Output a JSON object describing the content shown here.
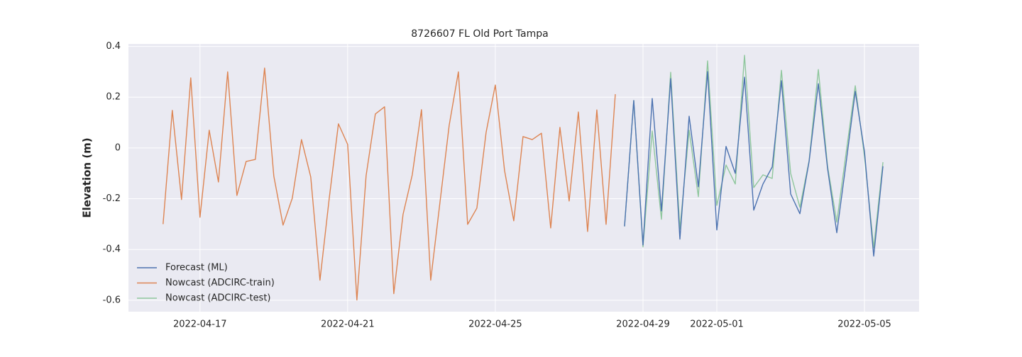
{
  "chart_data": {
    "type": "line",
    "title": "8726607 FL Old Port Tampa",
    "ylabel": "Elevation (m)",
    "xlim": [
      "2022-04-15 01:30",
      "2022-05-06 11:30"
    ],
    "xticks": [
      "2022-04-17",
      "2022-04-21",
      "2022-04-25",
      "2022-04-29",
      "2022-05-01",
      "2022-05-05"
    ],
    "ylim": [
      -0.645,
      0.41
    ],
    "yticks": [
      -0.6,
      -0.4,
      -0.2,
      0.0,
      0.2,
      0.4
    ],
    "grid": true,
    "legend": "lower left",
    "series": [
      {
        "name": "Forecast (ML)",
        "color": "#4c72b0",
        "x": [
          "2022-04-28 12:00",
          "2022-04-28 18:00",
          "2022-04-29 00:00",
          "2022-04-29 06:00",
          "2022-04-29 12:00",
          "2022-04-29 18:00",
          "2022-04-30 00:00",
          "2022-04-30 06:00",
          "2022-04-30 12:00",
          "2022-04-30 18:00",
          "2022-05-01 00:00",
          "2022-05-01 06:00",
          "2022-05-01 12:00",
          "2022-05-01 18:00",
          "2022-05-02 00:00",
          "2022-05-02 06:00",
          "2022-05-02 12:00",
          "2022-05-02 18:00",
          "2022-05-03 00:00",
          "2022-05-03 06:00",
          "2022-05-03 12:00",
          "2022-05-03 18:00",
          "2022-05-04 00:00",
          "2022-05-04 06:00",
          "2022-05-04 12:00",
          "2022-05-04 18:00",
          "2022-05-05 00:00",
          "2022-05-05 06:00",
          "2022-05-05 12:00"
        ],
        "values": [
          -0.309,
          0.187,
          -0.382,
          0.195,
          -0.248,
          0.273,
          -0.359,
          0.125,
          -0.153,
          0.301,
          -0.323,
          0.006,
          -0.1,
          0.279,
          -0.245,
          -0.142,
          -0.075,
          0.265,
          -0.181,
          -0.259,
          -0.053,
          0.253,
          -0.081,
          -0.334,
          -0.061,
          0.223,
          -0.014,
          -0.426,
          -0.072
        ]
      },
      {
        "name": "Nowcast (ADCIRC-train)",
        "color": "#dd8452",
        "x": [
          "2022-04-16 00:00",
          "2022-04-16 06:00",
          "2022-04-16 12:00",
          "2022-04-16 18:00",
          "2022-04-17 00:00",
          "2022-04-17 06:00",
          "2022-04-17 12:00",
          "2022-04-17 18:00",
          "2022-04-18 00:00",
          "2022-04-18 06:00",
          "2022-04-18 12:00",
          "2022-04-18 18:00",
          "2022-04-19 00:00",
          "2022-04-19 06:00",
          "2022-04-19 12:00",
          "2022-04-19 18:00",
          "2022-04-20 00:00",
          "2022-04-20 06:00",
          "2022-04-20 12:00",
          "2022-04-20 18:00",
          "2022-04-21 00:00",
          "2022-04-21 06:00",
          "2022-04-21 12:00",
          "2022-04-21 18:00",
          "2022-04-22 00:00",
          "2022-04-22 06:00",
          "2022-04-22 12:00",
          "2022-04-22 18:00",
          "2022-04-23 00:00",
          "2022-04-23 06:00",
          "2022-04-23 12:00",
          "2022-04-23 18:00",
          "2022-04-24 00:00",
          "2022-04-24 06:00",
          "2022-04-24 12:00",
          "2022-04-24 18:00",
          "2022-04-25 00:00",
          "2022-04-25 06:00",
          "2022-04-25 12:00",
          "2022-04-25 18:00",
          "2022-04-26 00:00",
          "2022-04-26 06:00",
          "2022-04-26 12:00",
          "2022-04-26 18:00",
          "2022-04-27 00:00",
          "2022-04-27 06:00",
          "2022-04-27 12:00",
          "2022-04-27 18:00",
          "2022-04-28 00:00",
          "2022-04-28 06:00"
        ],
        "values": [
          -0.3,
          0.148,
          -0.203,
          0.276,
          -0.273,
          0.07,
          -0.134,
          0.3,
          -0.187,
          -0.053,
          -0.045,
          0.315,
          -0.111,
          -0.304,
          -0.198,
          0.033,
          -0.114,
          -0.521,
          -0.2,
          0.095,
          0.014,
          -0.599,
          -0.109,
          0.134,
          0.162,
          -0.574,
          -0.262,
          -0.106,
          0.151,
          -0.521,
          -0.215,
          0.089,
          0.3,
          -0.301,
          -0.237,
          0.061,
          0.248,
          -0.089,
          -0.287,
          0.045,
          0.033,
          0.058,
          -0.315,
          0.081,
          -0.209,
          0.142,
          -0.329,
          0.15,
          -0.301,
          0.212
        ]
      },
      {
        "name": "Nowcast (ADCIRC-test)",
        "color": "#8fc79d",
        "x": [
          "2022-04-28 12:00",
          "2022-04-28 18:00",
          "2022-04-29 00:00",
          "2022-04-29 06:00",
          "2022-04-29 12:00",
          "2022-04-29 18:00",
          "2022-04-30 00:00",
          "2022-04-30 06:00",
          "2022-04-30 12:00",
          "2022-04-30 18:00",
          "2022-05-01 00:00",
          "2022-05-01 06:00",
          "2022-05-01 12:00",
          "2022-05-01 18:00",
          "2022-05-02 00:00",
          "2022-05-02 06:00",
          "2022-05-02 12:00",
          "2022-05-02 18:00",
          "2022-05-03 00:00",
          "2022-05-03 06:00",
          "2022-05-03 12:00",
          "2022-05-03 18:00",
          "2022-05-04 00:00",
          "2022-05-04 06:00",
          "2022-05-04 12:00",
          "2022-05-04 18:00",
          "2022-05-05 00:00",
          "2022-05-05 06:00",
          "2022-05-05 12:00"
        ],
        "values": [
          -0.309,
          0.187,
          -0.39,
          0.067,
          -0.281,
          0.298,
          -0.32,
          0.07,
          -0.192,
          0.343,
          -0.226,
          -0.067,
          -0.142,
          0.365,
          -0.156,
          -0.106,
          -0.12,
          0.306,
          -0.1,
          -0.234,
          -0.05,
          0.309,
          -0.072,
          -0.292,
          -0.022,
          0.245,
          -0.033,
          -0.393,
          -0.056
        ]
      }
    ]
  }
}
